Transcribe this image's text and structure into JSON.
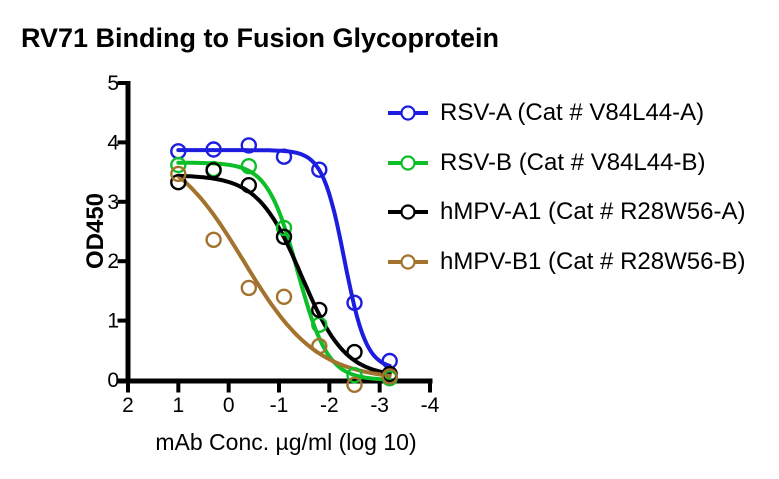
{
  "chart_data": {
    "type": "scatter",
    "subtype": "dose-response-4PL-curves-with-open-circle-markers",
    "title": "RV71 Binding to Fusion Glycoprotein",
    "xlabel": "mAb Conc. µg/ml (log 10)",
    "ylabel": "OD450",
    "grid": false,
    "legend_position": "right",
    "x_axis": {
      "min": 2,
      "max": -4,
      "reversed": true,
      "ticks": [
        2,
        1,
        0,
        -1,
        -2,
        -3,
        -4
      ]
    },
    "y_axis": {
      "min": 0,
      "max": 5,
      "ticks": [
        0,
        1,
        2,
        3,
        4,
        5
      ]
    },
    "x": [
      1,
      0.3,
      -0.4,
      -1.1,
      -1.8,
      -2.5,
      -3.2
    ],
    "series": [
      {
        "name": "rsv-a",
        "label": "RSV-A (Cat # V84L44-A)",
        "color": "#1d1de0",
        "marker": "open-circle",
        "od450": [
          3.85,
          3.88,
          3.95,
          3.76,
          3.54,
          1.3,
          0.32
        ],
        "fit": {
          "top": 3.87,
          "bottom": 0.18,
          "logec50": -2.3,
          "hill": 2.0
        }
      },
      {
        "name": "rsv-b",
        "label": "RSV-B (Cat # V84L44-B)",
        "color": "#0cbe27",
        "marker": "open-circle",
        "od450": [
          3.62,
          3.55,
          3.6,
          2.56,
          0.93,
          0.08,
          0.03
        ],
        "fit": {
          "top": 3.66,
          "bottom": 0.0,
          "logec50": -1.37,
          "hill": 1.45
        }
      },
      {
        "name": "hmpv-a1",
        "label": "hMPV-A1 (Cat # R28W56-A)",
        "color": "#000000",
        "marker": "open-circle",
        "od450": [
          3.33,
          3.53,
          3.28,
          2.41,
          1.18,
          0.47,
          0.1
        ],
        "fit": {
          "top": 3.45,
          "bottom": 0.05,
          "logec50": -1.45,
          "hill": 1.0
        }
      },
      {
        "name": "hmpv-b1",
        "label": "hMPV-B1 (Cat # R28W56-B)",
        "color": "#a3732e",
        "marker": "open-circle",
        "od450": [
          3.47,
          2.36,
          1.55,
          1.4,
          0.57,
          -0.08,
          0.06
        ],
        "fit": {
          "top": 4.0,
          "bottom": 0.0,
          "logec50": -0.3,
          "hill": 0.6
        }
      }
    ]
  }
}
